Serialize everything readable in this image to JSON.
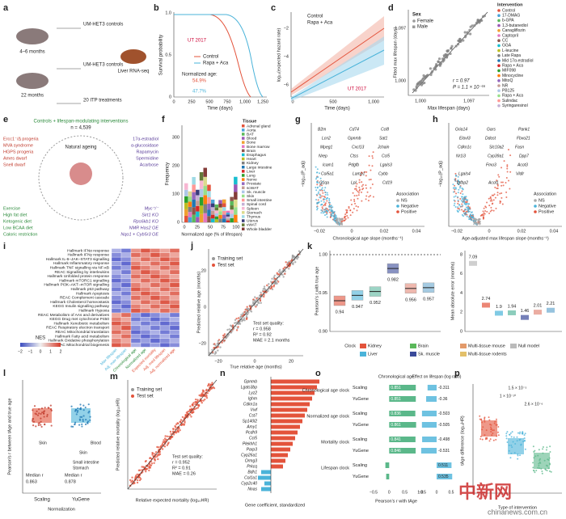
{
  "panels": {
    "a": {
      "label": "a",
      "ages": [
        "4–6 months",
        "22 months"
      ],
      "groups": [
        "UM-HET3 controls",
        "UM-HET3 controls",
        "20 ITP treatments"
      ],
      "output": "Liver RNA-seq"
    },
    "b": {
      "label": "b",
      "y_axis": "Survival probability",
      "x_axis": "Time (days)",
      "y_ticks": [
        "0",
        "0.5",
        "1.0"
      ],
      "x_ticks": [
        "0",
        "250",
        "500",
        "750",
        "1,000",
        "1,250"
      ],
      "legend": [
        "Control",
        "Rapa + Aca"
      ],
      "cohort": "UT 2017",
      "norm_title": "Normalized age:",
      "norm_values": [
        "54.9%",
        "47.7%"
      ]
    },
    "c": {
      "label": "c",
      "y_axis": "log₁₀(expected hazard rate)",
      "x_axis": "Time (days)",
      "y_ticks": [
        "−2",
        "−4",
        "−6"
      ],
      "x_ticks": [
        "0",
        "500",
        "1,000"
      ],
      "legend": [
        "Control",
        "Rapa + Aca"
      ],
      "cohort": "UT 2017"
    },
    "d": {
      "label": "d",
      "y_axis": "Fitted max lifespan (days)",
      "x_axis": "Max lifespan (days)",
      "ticks": [
        "1,000",
        "1,097"
      ],
      "sex_title": "Sex",
      "sex": [
        "Female",
        "Male"
      ],
      "stats": [
        "r = 0.97",
        "P = 1.1 × 10⁻¹⁶"
      ],
      "intervention_title": "Intervention",
      "interventions": [
        "Control",
        "17-DMAG",
        "b-GPA",
        "1,3-butanediol",
        "Canagliflozin",
        "Captopril",
        "CC",
        "GGA",
        "L-leucine",
        "Late Rapa",
        "Mid 17α-estradiol",
        "Rapa + Aca",
        "MIF098",
        "Minocycline",
        "MitoQ",
        "NR",
        "PB125",
        "Rapa + Aca",
        "Sulindac",
        "Syringaresinol"
      ]
    },
    "e": {
      "label": "e",
      "title": "Controls + lifespan-modulating interventions",
      "n": "n = 4,539",
      "center": "Natural ageing",
      "left": [
        "Ercc1⁻/Δ progeria",
        "MVA syndrome",
        "HGPS progeria",
        "Ames dwarf",
        "Snell dwarf"
      ],
      "right": [
        "17α-estradiol",
        "α-glucosidase",
        "Rapamycin",
        "Spermidine",
        "Acarbose"
      ],
      "bottom_left": [
        "Exercise",
        "High fat diet",
        "Ketogenic diet",
        "Low BCAA diet",
        "Caloric restriction"
      ],
      "bottom_right": [
        "Myc⁺/⁻",
        "Sirt1 KO",
        "Rps6kb1 KO",
        "NMR Has2 OE",
        "Nqo1 + Cyb5r3 OE"
      ]
    },
    "f": {
      "label": "f",
      "y_axis": "Frequency",
      "x_axis": "Normalized age (% of lifespan)",
      "y_ticks": [
        "0",
        "100",
        "200",
        "300"
      ],
      "x_ticks": [
        "0",
        "25",
        "50",
        "75",
        "100"
      ],
      "legend_title": "Tissue",
      "tissues": [
        "Adrenal gland",
        "Aorta",
        "BAT",
        "Blood",
        "Bone",
        "Bone marrow",
        "Brain",
        "Esophagus",
        "Heart",
        "Kidney",
        "Large intestine",
        "Liver",
        "Lung",
        "Nerve",
        "Prostate",
        "scWAT",
        "Sk. muscle",
        "Skin",
        "Small intestine",
        "Spinal cord",
        "Spleen",
        "Stomach",
        "Thymus",
        "Uterus",
        "vWAT",
        "Whole bladder"
      ]
    },
    "g": {
      "label": "g",
      "y_axis": "−log₁₀(P_adj)",
      "x_axis": "Chronological age slope (months⁻¹)",
      "x_ticks": [
        "−0.02",
        "0",
        "0.02",
        "0.04"
      ],
      "genes": [
        "B2m",
        "Gpnmb",
        "Jchain",
        "Nrep",
        "Pdgfb",
        "Cybb",
        "C1qa",
        "Cd74",
        "Sat1",
        "Mpeg1",
        "Ctss",
        "Lgals3",
        "Col5a1",
        "Lpl",
        "Ccl8",
        "Lcn2",
        "Cxcl13",
        "Ccl5",
        "Icam1",
        "Lamp1",
        "Cd19"
      ],
      "legend_title": "Association",
      "legend": [
        "NS",
        "Negative",
        "Positive"
      ]
    },
    "h": {
      "label": "h",
      "y_axis": "−log₁₀(P_adj)",
      "x_axis": "Age-adjusted max lifespan slope (months⁻¹)",
      "x_ticks": [
        "−0.02",
        "0",
        "0.02",
        "0.04"
      ],
      "genes": [
        "Gria14",
        "Ddost",
        "Fasn",
        "Nr1i3",
        "Fmo3",
        "Vldlr",
        "Igfbp2",
        "Gars",
        "Fbxo21",
        "Cdkn1c",
        "Cyp39a1",
        "Acot3",
        "Lgals4",
        "Acot1",
        "Pank1",
        "Elovl3",
        "Slc10a2",
        "Dpp7"
      ],
      "legend_title": "Association",
      "legend": [
        "NS",
        "Negative",
        "Positive"
      ]
    },
    "i": {
      "label": "i",
      "rows": [
        "Hallmark IFNα response",
        "Hallmark IFNγ response",
        "Hallmark IL-6–JAK–STAT3 signalling",
        "Hallmark Inflammatory response",
        "Hallmark TNF signalling via NF-κB",
        "REAC Signalling by interleukins",
        "Hallmark Unfolded protein response",
        "Hallmark mTORC1 signalling",
        "Hallmark PI3K–AKT–mTOR signalling",
        "Hallmark p53 pathway",
        "Hallmark Apoptosis",
        "REAC Complement cascade",
        "Hallmark Cholesterol homeostasis",
        "KEGG Insulin signalling pathway",
        "Hallmark Hypoxia",
        "REAC Metabolism of AAs and derivatives",
        "KEGG Drug met cytochrome P450",
        "Hallmark Xenobiotic metabolism",
        "REAC Respiratory electron transport",
        "REAC Mitochondrial translation",
        "Hallmark Fatty acid metabolism",
        "Hallmark Oxidative phosphorylation",
        "REAC Mitochondrial biogenesis"
      ],
      "columns": [
        "Max lifespan",
        "Adj. max lifespan",
        "Chronological age",
        "Normalized age",
        "Expected mortality",
        "Adj. med lifespan",
        "Adj. normalized age"
      ],
      "scale_title": "NES",
      "scale_ticks": [
        "−2",
        "−1",
        "0",
        "1",
        "2"
      ]
    },
    "j": {
      "label": "j",
      "y_axis": "Predicted relative age (months)",
      "x_axis": "True relative age (months)",
      "ticks": [
        "−20",
        "0",
        "20"
      ],
      "legend": [
        "Training set",
        "Test set"
      ],
      "stats": [
        "Test set quality:",
        "r = 0.958",
        "R² = 0.92",
        "MAE = 2.1 months"
      ]
    },
    "k": {
      "label": "k",
      "y_axis": "Pearson's r with true age",
      "y_ticks": [
        "0.90",
        "0.95",
        "1.00"
      ],
      "r_values": [
        0.94,
        0.947,
        0.952,
        0.982,
        0.956,
        0.957
      ],
      "y2_axis": "Mean absolute error (months)",
      "y2_ticks": [
        "0",
        "2",
        "4",
        "6",
        "8"
      ],
      "errors": [
        7.09,
        2.74,
        1.9,
        1.94,
        1.46,
        2.01,
        2.21
      ],
      "legend_title": "Clock",
      "legend": [
        "Kidney",
        "Brain",
        "Multi-tissue mouse",
        "Null model",
        "Liver",
        "Sk. muscle",
        "Multi-tissue rodents"
      ]
    },
    "l": {
      "label": "l",
      "y_axis": "Pearson's r between tAge and true age",
      "x_axis": "Normalization",
      "groups": [
        "Scaling",
        "YuGene"
      ],
      "outliers": [
        "Skin",
        "Skin",
        "Blood",
        "Small intestine",
        "Stomach"
      ],
      "medians": [
        "Median r",
        "0.863",
        "Median r",
        "0.878"
      ]
    },
    "m": {
      "label": "m",
      "y_axis": "Predicted relative mortality (log₁₀HR)",
      "x_axis": "Relative expected mortality (log₁₀HR)",
      "legend": [
        "Training set",
        "Test set"
      ],
      "stats": [
        "Test set quality:",
        "r = 0.952",
        "R² = 0.91",
        "MAE = 0.26"
      ]
    },
    "n": {
      "label": "n",
      "x_axis": "Gene coefficient, standardized",
      "genes": [
        "Gpnmb",
        "Lgals3bp",
        "Lyz2",
        "Ighm",
        "Cdkn1a",
        "Vwf",
        "Cst7",
        "Sp140l2",
        "Amy1",
        "Pcdh9",
        "Ccl5",
        "Plekhh1",
        "Parp3",
        "Cyp26a1",
        "Ormg3",
        "Prkcq",
        "Bdh1",
        "Col1a1",
        "Cyp2c40",
        "Nnas"
      ]
    },
    "o": {
      "label": "o",
      "headers": [
        "Chronological age",
        "Effect on lifespan (log ratio)"
      ],
      "rows": [
        {
          "clock": "Chronological age clock",
          "methods": [
            "Scaling",
            "YuGene"
          ],
          "r": [
            0.851,
            0.851
          ],
          "effect": [
            -0.311,
            -0.36
          ]
        },
        {
          "clock": "Normalized age clock",
          "methods": [
            "Scaling",
            "YuGene"
          ],
          "r": [
            0.836,
            0.861
          ],
          "effect": [
            -0.503,
            -0.505
          ]
        },
        {
          "clock": "Mortality clock",
          "methods": [
            "Scaling",
            "YuGene"
          ],
          "r": [
            0.841,
            0.846
          ],
          "effect": [
            -0.498,
            -0.531
          ]
        },
        {
          "clock": "Lifespan clock",
          "methods": [
            "Scaling",
            "YuGene"
          ],
          "r": [
            -0.122,
            -0.096
          ],
          "effect": [
            0.511,
            0.535
          ]
        }
      ],
      "x_axis": "Pearson's r with tAge",
      "ticks_left": [
        "−0.5",
        "0",
        "0.5",
        "1.0"
      ],
      "ticks_right": [
        "−0.5",
        "0",
        "0.5"
      ]
    },
    "p": {
      "label": "p",
      "y_axis": "tAge difference (log₁₀HR)",
      "x_axis": "Type of intervention",
      "pvalues": [
        "1.5 × 10⁻⁵",
        "1 × 10⁻¹⁰",
        "2.6 × 10⁻⁶"
      ]
    }
  },
  "watermark": {
    "logo": "中新网",
    "site": "chinanews.com.cn"
  }
}
